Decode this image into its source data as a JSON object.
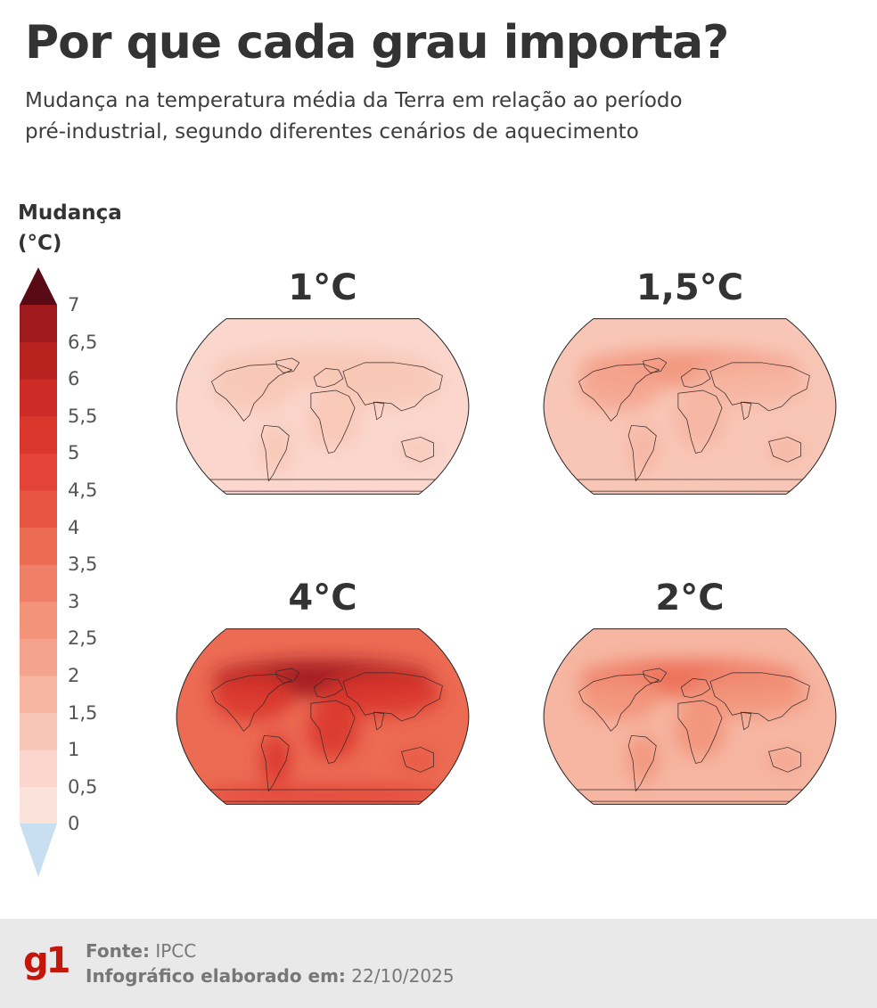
{
  "header": {
    "title": "Por que cada grau importa?",
    "subtitle_line1": "Mudança na temperatura média da Terra em relação ao período",
    "subtitle_line2": "pré-industrial, segundo diferentes cenários de aquecimento"
  },
  "legend": {
    "title_line1": "Mudança",
    "title_line2": "(°C)",
    "ticks": [
      "7",
      "6,5",
      "6",
      "5,5",
      "5",
      "4,5",
      "4",
      "3,5",
      "3",
      "2,5",
      "2",
      "1,5",
      "1",
      "0,5",
      "0"
    ],
    "colors_low_to_high": [
      "#fbe3dc",
      "#fad6cc",
      "#f8c6b6",
      "#f6b6a2",
      "#f4a48e",
      "#f2937a",
      "#ef7f66",
      "#ec6b53",
      "#e85643",
      "#e34437",
      "#da362c",
      "#cc2c25",
      "#b8231f",
      "#9e1a1c",
      "#7d1117"
    ],
    "below_min_color": "#c7dff0",
    "above_max_color": "#5a0a14"
  },
  "maps": [
    {
      "label": "1°C",
      "warming": 1.0
    },
    {
      "label": "1,5°C",
      "warming": 1.5
    },
    {
      "label": "4°C",
      "warming": 4.0
    },
    {
      "label": "2°C",
      "warming": 2.0
    }
  ],
  "footer": {
    "logo": "g1",
    "source_label": "Fonte:",
    "source_value": "IPCC",
    "date_label": "Infográfico elaborado em:",
    "date_value": "22/10/2025"
  }
}
